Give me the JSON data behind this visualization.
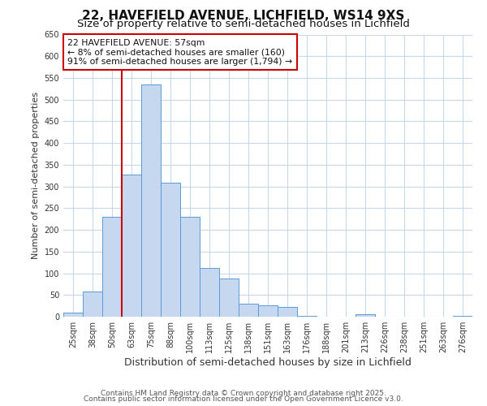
{
  "title": "22, HAVEFIELD AVENUE, LICHFIELD, WS14 9XS",
  "subtitle": "Size of property relative to semi-detached houses in Lichfield",
  "xlabel": "Distribution of semi-detached houses by size in Lichfield",
  "ylabel": "Number of semi-detached properties",
  "bar_labels": [
    "25sqm",
    "38sqm",
    "50sqm",
    "63sqm",
    "75sqm",
    "88sqm",
    "100sqm",
    "113sqm",
    "125sqm",
    "138sqm",
    "151sqm",
    "163sqm",
    "176sqm",
    "188sqm",
    "201sqm",
    "213sqm",
    "226sqm",
    "238sqm",
    "251sqm",
    "263sqm",
    "276sqm"
  ],
  "bar_values": [
    10,
    58,
    230,
    328,
    535,
    308,
    230,
    113,
    88,
    30,
    27,
    22,
    2,
    0,
    0,
    5,
    0,
    0,
    0,
    0,
    1
  ],
  "ylim": [
    0,
    650
  ],
  "yticks": [
    0,
    50,
    100,
    150,
    200,
    250,
    300,
    350,
    400,
    450,
    500,
    550,
    600,
    650
  ],
  "bar_color": "#c5d8f0",
  "bar_edge_color": "#5b9bd5",
  "vline_x_idx": 2,
  "vline_color": "#cc0000",
  "annotation_title": "22 HAVEFIELD AVENUE: 57sqm",
  "annotation_line1": "← 8% of semi-detached houses are smaller (160)",
  "annotation_line2": "91% of semi-detached houses are larger (1,794) →",
  "annotation_box_color": "#ffffff",
  "annotation_box_edge": "#cc0000",
  "footer1": "Contains HM Land Registry data © Crown copyright and database right 2025.",
  "footer2": "Contains public sector information licensed under the Open Government Licence v3.0.",
  "background_color": "#ffffff",
  "grid_color": "#c8d8ea",
  "title_fontsize": 11,
  "subtitle_fontsize": 9.5,
  "annotation_fontsize": 7.8,
  "ylabel_fontsize": 8,
  "xlabel_fontsize": 9,
  "footer_fontsize": 6.5,
  "tick_fontsize": 7
}
